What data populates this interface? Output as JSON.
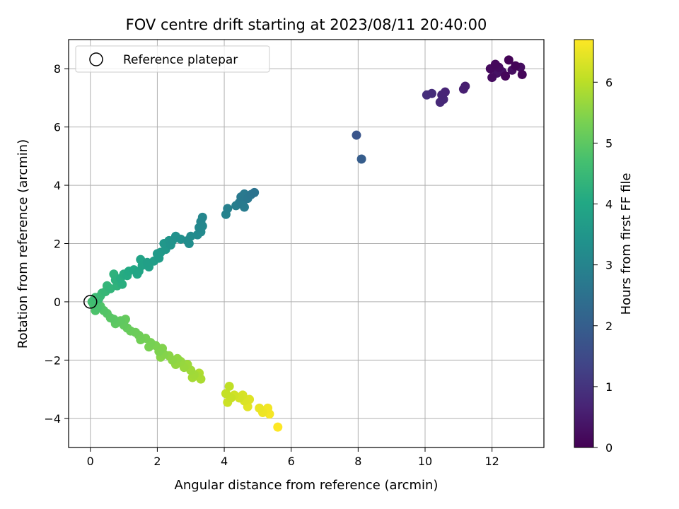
{
  "chart_data": {
    "type": "scatter",
    "title": "FOV centre drift starting at 2023/08/11 20:40:00",
    "xlabel": "Angular distance from reference (arcmin)",
    "ylabel": "Rotation from reference (arcmin)",
    "xlim": [
      -0.65,
      13.55
    ],
    "ylim": [
      -5.0,
      9.0
    ],
    "xticks": [
      0,
      2,
      4,
      6,
      8,
      10,
      12
    ],
    "yticks": [
      -4,
      -2,
      0,
      2,
      4,
      6,
      8
    ],
    "grid": true,
    "legend": {
      "position": "top-left",
      "entries": [
        {
          "label": "Reference platepar",
          "marker": "hollow-circle"
        }
      ]
    },
    "reference_point": {
      "x": 0,
      "y": 0
    },
    "colorbar": {
      "label": "Hours from first FF file",
      "colormap": "viridis",
      "range": [
        0,
        6.7
      ],
      "ticks": [
        0,
        1,
        2,
        3,
        4,
        5,
        6
      ]
    },
    "points": [
      {
        "x": 12.5,
        "y": 8.3,
        "t": 0.05
      },
      {
        "x": 12.7,
        "y": 8.1,
        "t": 0.08
      },
      {
        "x": 12.9,
        "y": 7.8,
        "t": 0.1
      },
      {
        "x": 12.4,
        "y": 7.75,
        "t": 0.12
      },
      {
        "x": 12.1,
        "y": 8.15,
        "t": 0.15
      },
      {
        "x": 11.95,
        "y": 8.0,
        "t": 0.18
      },
      {
        "x": 12.2,
        "y": 8.05,
        "t": 0.2
      },
      {
        "x": 12.0,
        "y": 7.7,
        "t": 0.22
      },
      {
        "x": 12.85,
        "y": 8.05,
        "t": 0.25
      },
      {
        "x": 12.6,
        "y": 7.95,
        "t": 0.27
      },
      {
        "x": 12.3,
        "y": 7.9,
        "t": 0.3
      },
      {
        "x": 12.15,
        "y": 7.85,
        "t": 0.32
      },
      {
        "x": 11.2,
        "y": 7.4,
        "t": 0.55
      },
      {
        "x": 11.15,
        "y": 7.3,
        "t": 0.58
      },
      {
        "x": 10.6,
        "y": 7.2,
        "t": 0.7
      },
      {
        "x": 10.5,
        "y": 7.1,
        "t": 0.72
      },
      {
        "x": 10.55,
        "y": 6.95,
        "t": 0.75
      },
      {
        "x": 10.45,
        "y": 6.85,
        "t": 0.78
      },
      {
        "x": 10.2,
        "y": 7.15,
        "t": 0.85
      },
      {
        "x": 10.05,
        "y": 7.1,
        "t": 0.9
      },
      {
        "x": 7.95,
        "y": 5.72,
        "t": 1.75
      },
      {
        "x": 8.1,
        "y": 4.9,
        "t": 1.95
      },
      {
        "x": 4.9,
        "y": 3.75,
        "t": 2.55
      },
      {
        "x": 4.8,
        "y": 3.68,
        "t": 2.6
      },
      {
        "x": 4.7,
        "y": 3.55,
        "t": 2.65
      },
      {
        "x": 4.6,
        "y": 3.7,
        "t": 2.7
      },
      {
        "x": 4.5,
        "y": 3.6,
        "t": 2.72
      },
      {
        "x": 4.55,
        "y": 3.35,
        "t": 2.75
      },
      {
        "x": 4.6,
        "y": 3.25,
        "t": 2.78
      },
      {
        "x": 4.45,
        "y": 3.4,
        "t": 2.8
      },
      {
        "x": 4.35,
        "y": 3.3,
        "t": 2.85
      },
      {
        "x": 4.1,
        "y": 3.2,
        "t": 2.9
      },
      {
        "x": 4.05,
        "y": 3.0,
        "t": 2.95
      },
      {
        "x": 3.35,
        "y": 2.9,
        "t": 3.05
      },
      {
        "x": 3.3,
        "y": 2.75,
        "t": 3.08
      },
      {
        "x": 3.35,
        "y": 2.6,
        "t": 3.1
      },
      {
        "x": 3.25,
        "y": 2.55,
        "t": 3.12
      },
      {
        "x": 3.3,
        "y": 2.4,
        "t": 3.15
      },
      {
        "x": 3.2,
        "y": 2.3,
        "t": 3.18
      },
      {
        "x": 3.0,
        "y": 2.25,
        "t": 3.22
      },
      {
        "x": 2.9,
        "y": 2.1,
        "t": 3.25
      },
      {
        "x": 2.95,
        "y": 2.0,
        "t": 3.28
      },
      {
        "x": 2.7,
        "y": 2.15,
        "t": 3.32
      },
      {
        "x": 2.55,
        "y": 2.25,
        "t": 3.36
      },
      {
        "x": 2.45,
        "y": 2.1,
        "t": 3.4
      },
      {
        "x": 2.4,
        "y": 1.95,
        "t": 3.44
      },
      {
        "x": 2.35,
        "y": 2.1,
        "t": 3.48
      },
      {
        "x": 2.2,
        "y": 2.0,
        "t": 3.52
      },
      {
        "x": 2.25,
        "y": 1.8,
        "t": 3.56
      },
      {
        "x": 2.1,
        "y": 1.7,
        "t": 3.6
      },
      {
        "x": 2.0,
        "y": 1.65,
        "t": 3.64
      },
      {
        "x": 2.05,
        "y": 1.5,
        "t": 3.68
      },
      {
        "x": 1.9,
        "y": 1.4,
        "t": 3.72
      },
      {
        "x": 1.7,
        "y": 1.35,
        "t": 3.76
      },
      {
        "x": 1.75,
        "y": 1.2,
        "t": 3.8
      },
      {
        "x": 1.55,
        "y": 1.25,
        "t": 3.84
      },
      {
        "x": 1.5,
        "y": 1.45,
        "t": 3.88
      },
      {
        "x": 1.45,
        "y": 1.05,
        "t": 3.92
      },
      {
        "x": 1.4,
        "y": 0.95,
        "t": 3.96
      },
      {
        "x": 1.3,
        "y": 1.1,
        "t": 4.0
      },
      {
        "x": 1.15,
        "y": 1.05,
        "t": 4.04
      },
      {
        "x": 1.1,
        "y": 0.9,
        "t": 4.08
      },
      {
        "x": 1.0,
        "y": 0.95,
        "t": 4.12
      },
      {
        "x": 0.9,
        "y": 0.8,
        "t": 4.16
      },
      {
        "x": 0.95,
        "y": 0.6,
        "t": 4.2
      },
      {
        "x": 0.75,
        "y": 0.75,
        "t": 4.24
      },
      {
        "x": 0.7,
        "y": 0.95,
        "t": 4.28
      },
      {
        "x": 0.8,
        "y": 0.55,
        "t": 4.32
      },
      {
        "x": 0.6,
        "y": 0.45,
        "t": 4.36
      },
      {
        "x": 0.5,
        "y": 0.55,
        "t": 4.4
      },
      {
        "x": 0.45,
        "y": 0.35,
        "t": 4.44
      },
      {
        "x": 0.35,
        "y": 0.3,
        "t": 4.48
      },
      {
        "x": 0.3,
        "y": 0.2,
        "t": 4.52
      },
      {
        "x": 0.25,
        "y": 0.1,
        "t": 4.56
      },
      {
        "x": 0.15,
        "y": 0.15,
        "t": 4.6
      },
      {
        "x": 0.1,
        "y": 0.05,
        "t": 4.64
      },
      {
        "x": 0.05,
        "y": 0.0,
        "t": 4.68
      },
      {
        "x": 0.1,
        "y": -0.1,
        "t": 4.72
      },
      {
        "x": 0.2,
        "y": -0.2,
        "t": 4.76
      },
      {
        "x": 0.15,
        "y": -0.3,
        "t": 4.8
      },
      {
        "x": 0.3,
        "y": -0.15,
        "t": 4.84
      },
      {
        "x": 0.4,
        "y": -0.3,
        "t": 4.88
      },
      {
        "x": 0.5,
        "y": -0.4,
        "t": 4.92
      },
      {
        "x": 0.6,
        "y": -0.55,
        "t": 4.95
      },
      {
        "x": 0.7,
        "y": -0.6,
        "t": 4.98
      },
      {
        "x": 0.75,
        "y": -0.75,
        "t": 5.01
      },
      {
        "x": 0.9,
        "y": -0.65,
        "t": 5.04
      },
      {
        "x": 1.0,
        "y": -0.8,
        "t": 5.07
      },
      {
        "x": 1.05,
        "y": -0.6,
        "t": 5.1
      },
      {
        "x": 1.1,
        "y": -0.9,
        "t": 5.13
      },
      {
        "x": 1.2,
        "y": -1.0,
        "t": 5.16
      },
      {
        "x": 1.35,
        "y": -1.05,
        "t": 5.19
      },
      {
        "x": 1.45,
        "y": -1.15,
        "t": 5.22
      },
      {
        "x": 1.5,
        "y": -1.3,
        "t": 5.25
      },
      {
        "x": 1.65,
        "y": -1.25,
        "t": 5.28
      },
      {
        "x": 1.8,
        "y": -1.4,
        "t": 5.31
      },
      {
        "x": 1.75,
        "y": -1.55,
        "t": 5.34
      },
      {
        "x": 1.95,
        "y": -1.5,
        "t": 5.37
      },
      {
        "x": 2.05,
        "y": -1.7,
        "t": 5.4
      },
      {
        "x": 2.15,
        "y": -1.6,
        "t": 5.43
      },
      {
        "x": 2.2,
        "y": -1.8,
        "t": 5.46
      },
      {
        "x": 2.1,
        "y": -1.9,
        "t": 5.49
      },
      {
        "x": 2.35,
        "y": -1.85,
        "t": 5.52
      },
      {
        "x": 2.45,
        "y": -2.0,
        "t": 5.55
      },
      {
        "x": 2.6,
        "y": -1.95,
        "t": 5.58
      },
      {
        "x": 2.55,
        "y": -2.15,
        "t": 5.61
      },
      {
        "x": 2.7,
        "y": -2.05,
        "t": 5.64
      },
      {
        "x": 2.8,
        "y": -2.25,
        "t": 5.67
      },
      {
        "x": 2.9,
        "y": -2.15,
        "t": 5.7
      },
      {
        "x": 3.0,
        "y": -2.35,
        "t": 5.73
      },
      {
        "x": 3.1,
        "y": -2.5,
        "t": 5.76
      },
      {
        "x": 3.05,
        "y": -2.6,
        "t": 5.79
      },
      {
        "x": 3.2,
        "y": -2.55,
        "t": 5.82
      },
      {
        "x": 3.3,
        "y": -2.65,
        "t": 5.85
      },
      {
        "x": 3.25,
        "y": -2.45,
        "t": 5.88
      },
      {
        "x": 4.15,
        "y": -2.9,
        "t": 6.05
      },
      {
        "x": 4.05,
        "y": -3.15,
        "t": 6.1
      },
      {
        "x": 4.2,
        "y": -3.3,
        "t": 6.14
      },
      {
        "x": 4.1,
        "y": -3.45,
        "t": 6.18
      },
      {
        "x": 4.3,
        "y": -3.2,
        "t": 6.22
      },
      {
        "x": 4.45,
        "y": -3.3,
        "t": 6.26
      },
      {
        "x": 4.55,
        "y": -3.2,
        "t": 6.3
      },
      {
        "x": 4.6,
        "y": -3.4,
        "t": 6.34
      },
      {
        "x": 4.75,
        "y": -3.35,
        "t": 6.38
      },
      {
        "x": 4.7,
        "y": -3.6,
        "t": 6.42
      },
      {
        "x": 5.05,
        "y": -3.65,
        "t": 6.5
      },
      {
        "x": 5.15,
        "y": -3.8,
        "t": 6.54
      },
      {
        "x": 5.3,
        "y": -3.65,
        "t": 6.58
      },
      {
        "x": 5.35,
        "y": -3.85,
        "t": 6.62
      },
      {
        "x": 5.6,
        "y": -4.3,
        "t": 6.7
      }
    ]
  }
}
